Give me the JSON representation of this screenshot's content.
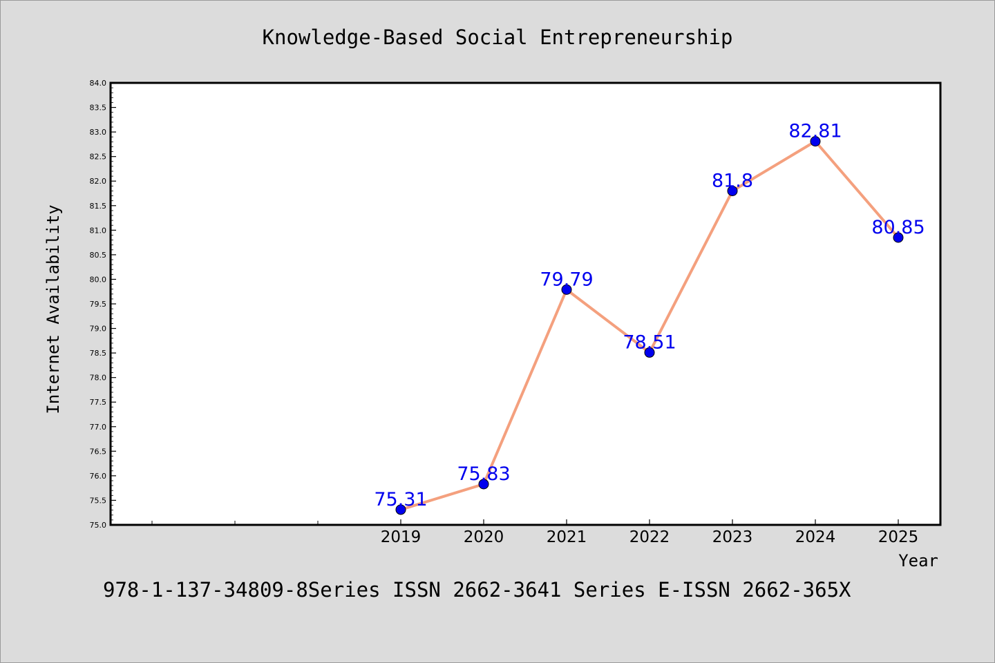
{
  "chart_data": {
    "type": "line",
    "title": "Knowledge-Based Social Entrepreneurship",
    "xlabel": "Year",
    "ylabel": "Internet Availability",
    "x": [
      "2019",
      "2020",
      "2021",
      "2022",
      "2023",
      "2024",
      "2025"
    ],
    "values": [
      75.31,
      75.83,
      79.79,
      78.51,
      81.8,
      82.81,
      80.85
    ],
    "data_labels": [
      "75.31",
      "75.83",
      "79.79",
      "78.51",
      "81.8",
      "82.81",
      "80.85"
    ],
    "ylim": [
      75.0,
      84.0
    ],
    "y_ticks": [
      "75.0",
      "75.5",
      "76.0",
      "76.5",
      "77.0",
      "77.5",
      "78.0",
      "78.5",
      "79.0",
      "79.5",
      "80.0",
      "80.5",
      "81.0",
      "81.5",
      "82.0",
      "82.5",
      "83.0",
      "83.5",
      "84.0"
    ],
    "grid": false,
    "line_color": "#f4a07e",
    "marker_color": "#0000ee",
    "label_color": "#0000ee"
  },
  "footer": {
    "text": "978-1-137-34809-8Series ISSN 2662-3641 Series E-ISSN 2662-365X"
  }
}
